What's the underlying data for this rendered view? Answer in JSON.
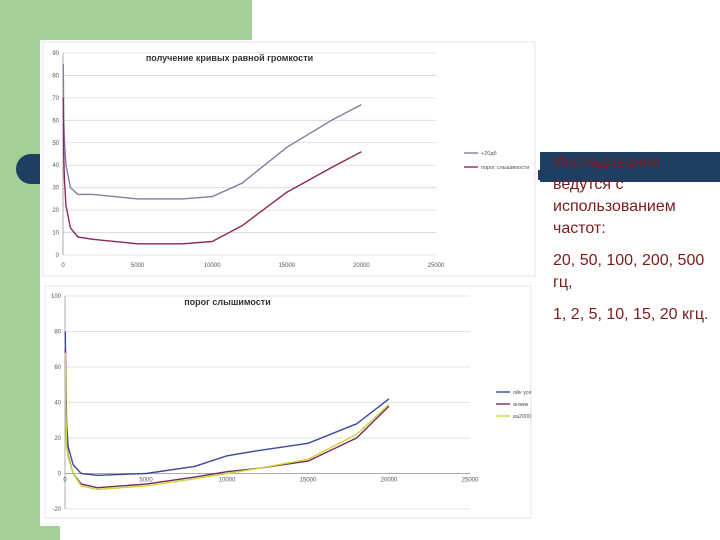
{
  "side_text": {
    "paragraph1": "Исследования ведутся с использованием частот:",
    "paragraph2": "20, 50, 100, 200, 500 гц,",
    "paragraph3": "1, 2, 5, 10, 15, 20 кгц."
  },
  "colors": {
    "background": "#ffffff",
    "green": "#a3cf96",
    "navy": "#1f3f62",
    "text_dark_red": "#7a1c1c",
    "grid": "#d9d9d9",
    "axis_text": "#555555"
  },
  "chart_data": [
    {
      "type": "line",
      "title": "получение кривых равной громкости",
      "xlabel": "",
      "ylabel": "",
      "xlim": [
        0,
        25000
      ],
      "ylim": [
        0,
        90
      ],
      "x_ticks": [
        "0",
        "5000",
        "10000",
        "15000",
        "20000",
        "25000"
      ],
      "y_ticks": [
        "0",
        "10",
        "20",
        "30",
        "40",
        "50",
        "60",
        "70",
        "80",
        "90"
      ],
      "grid": true,
      "legend_position": "right",
      "series": [
        {
          "name": "+20дб",
          "color": "#7f7f9f",
          "x": [
            20,
            50,
            100,
            200,
            500,
            1000,
            2000,
            5000,
            8000,
            10000,
            12000,
            15000,
            18000,
            20000
          ],
          "y": [
            85,
            60,
            50,
            40,
            30,
            27,
            27,
            25,
            25,
            26,
            32,
            48,
            60,
            67
          ]
        },
        {
          "name": "порог слышимости",
          "color": "#8b2a5a",
          "x": [
            20,
            50,
            100,
            200,
            500,
            1000,
            2000,
            5000,
            8000,
            10000,
            12000,
            15000,
            18000,
            20000
          ],
          "y": [
            70,
            45,
            33,
            22,
            12,
            8,
            7,
            5,
            5,
            6,
            13,
            28,
            39,
            46
          ]
        }
      ]
    },
    {
      "type": "line",
      "title": "порог слышимости",
      "xlabel": "",
      "ylabel": "",
      "xlim": [
        0,
        25000
      ],
      "ylim": [
        -20,
        100
      ],
      "x_ticks": [
        "0",
        "5000",
        "10000",
        "15000",
        "20000",
        "25000"
      ],
      "y_ticks": [
        "-20",
        "0",
        "20",
        "40",
        "60",
        "80",
        "100"
      ],
      "grid": true,
      "legend_position": "right",
      "series": [
        {
          "name": "ойк усе",
          "color": "#3b4a9a",
          "x": [
            20,
            50,
            100,
            200,
            500,
            1000,
            2000,
            5000,
            8000,
            10000,
            12000,
            15000,
            18000,
            20000
          ],
          "y": [
            80,
            55,
            28,
            15,
            5,
            0,
            -1,
            0,
            4,
            10,
            13,
            17,
            28,
            42
          ]
        },
        {
          "name": "анжик",
          "color": "#7a2a5a",
          "x": [
            20,
            50,
            100,
            200,
            500,
            1000,
            2000,
            5000,
            8000,
            10000,
            12000,
            15000,
            18000,
            20000
          ],
          "y": [
            70,
            40,
            18,
            10,
            0,
            -6,
            -8,
            -6,
            -2,
            1,
            3,
            7,
            20,
            38
          ]
        },
        {
          "name": "ва2000",
          "color": "#c8d83a",
          "x": [
            20,
            50,
            100,
            200,
            500,
            1000,
            2000,
            5000,
            8000,
            10000,
            12000,
            15000,
            18000,
            20000
          ],
          "y": [
            68,
            38,
            16,
            9,
            0,
            -7,
            -9,
            -7,
            -3,
            0,
            3,
            8,
            22,
            39
          ]
        }
      ]
    }
  ]
}
